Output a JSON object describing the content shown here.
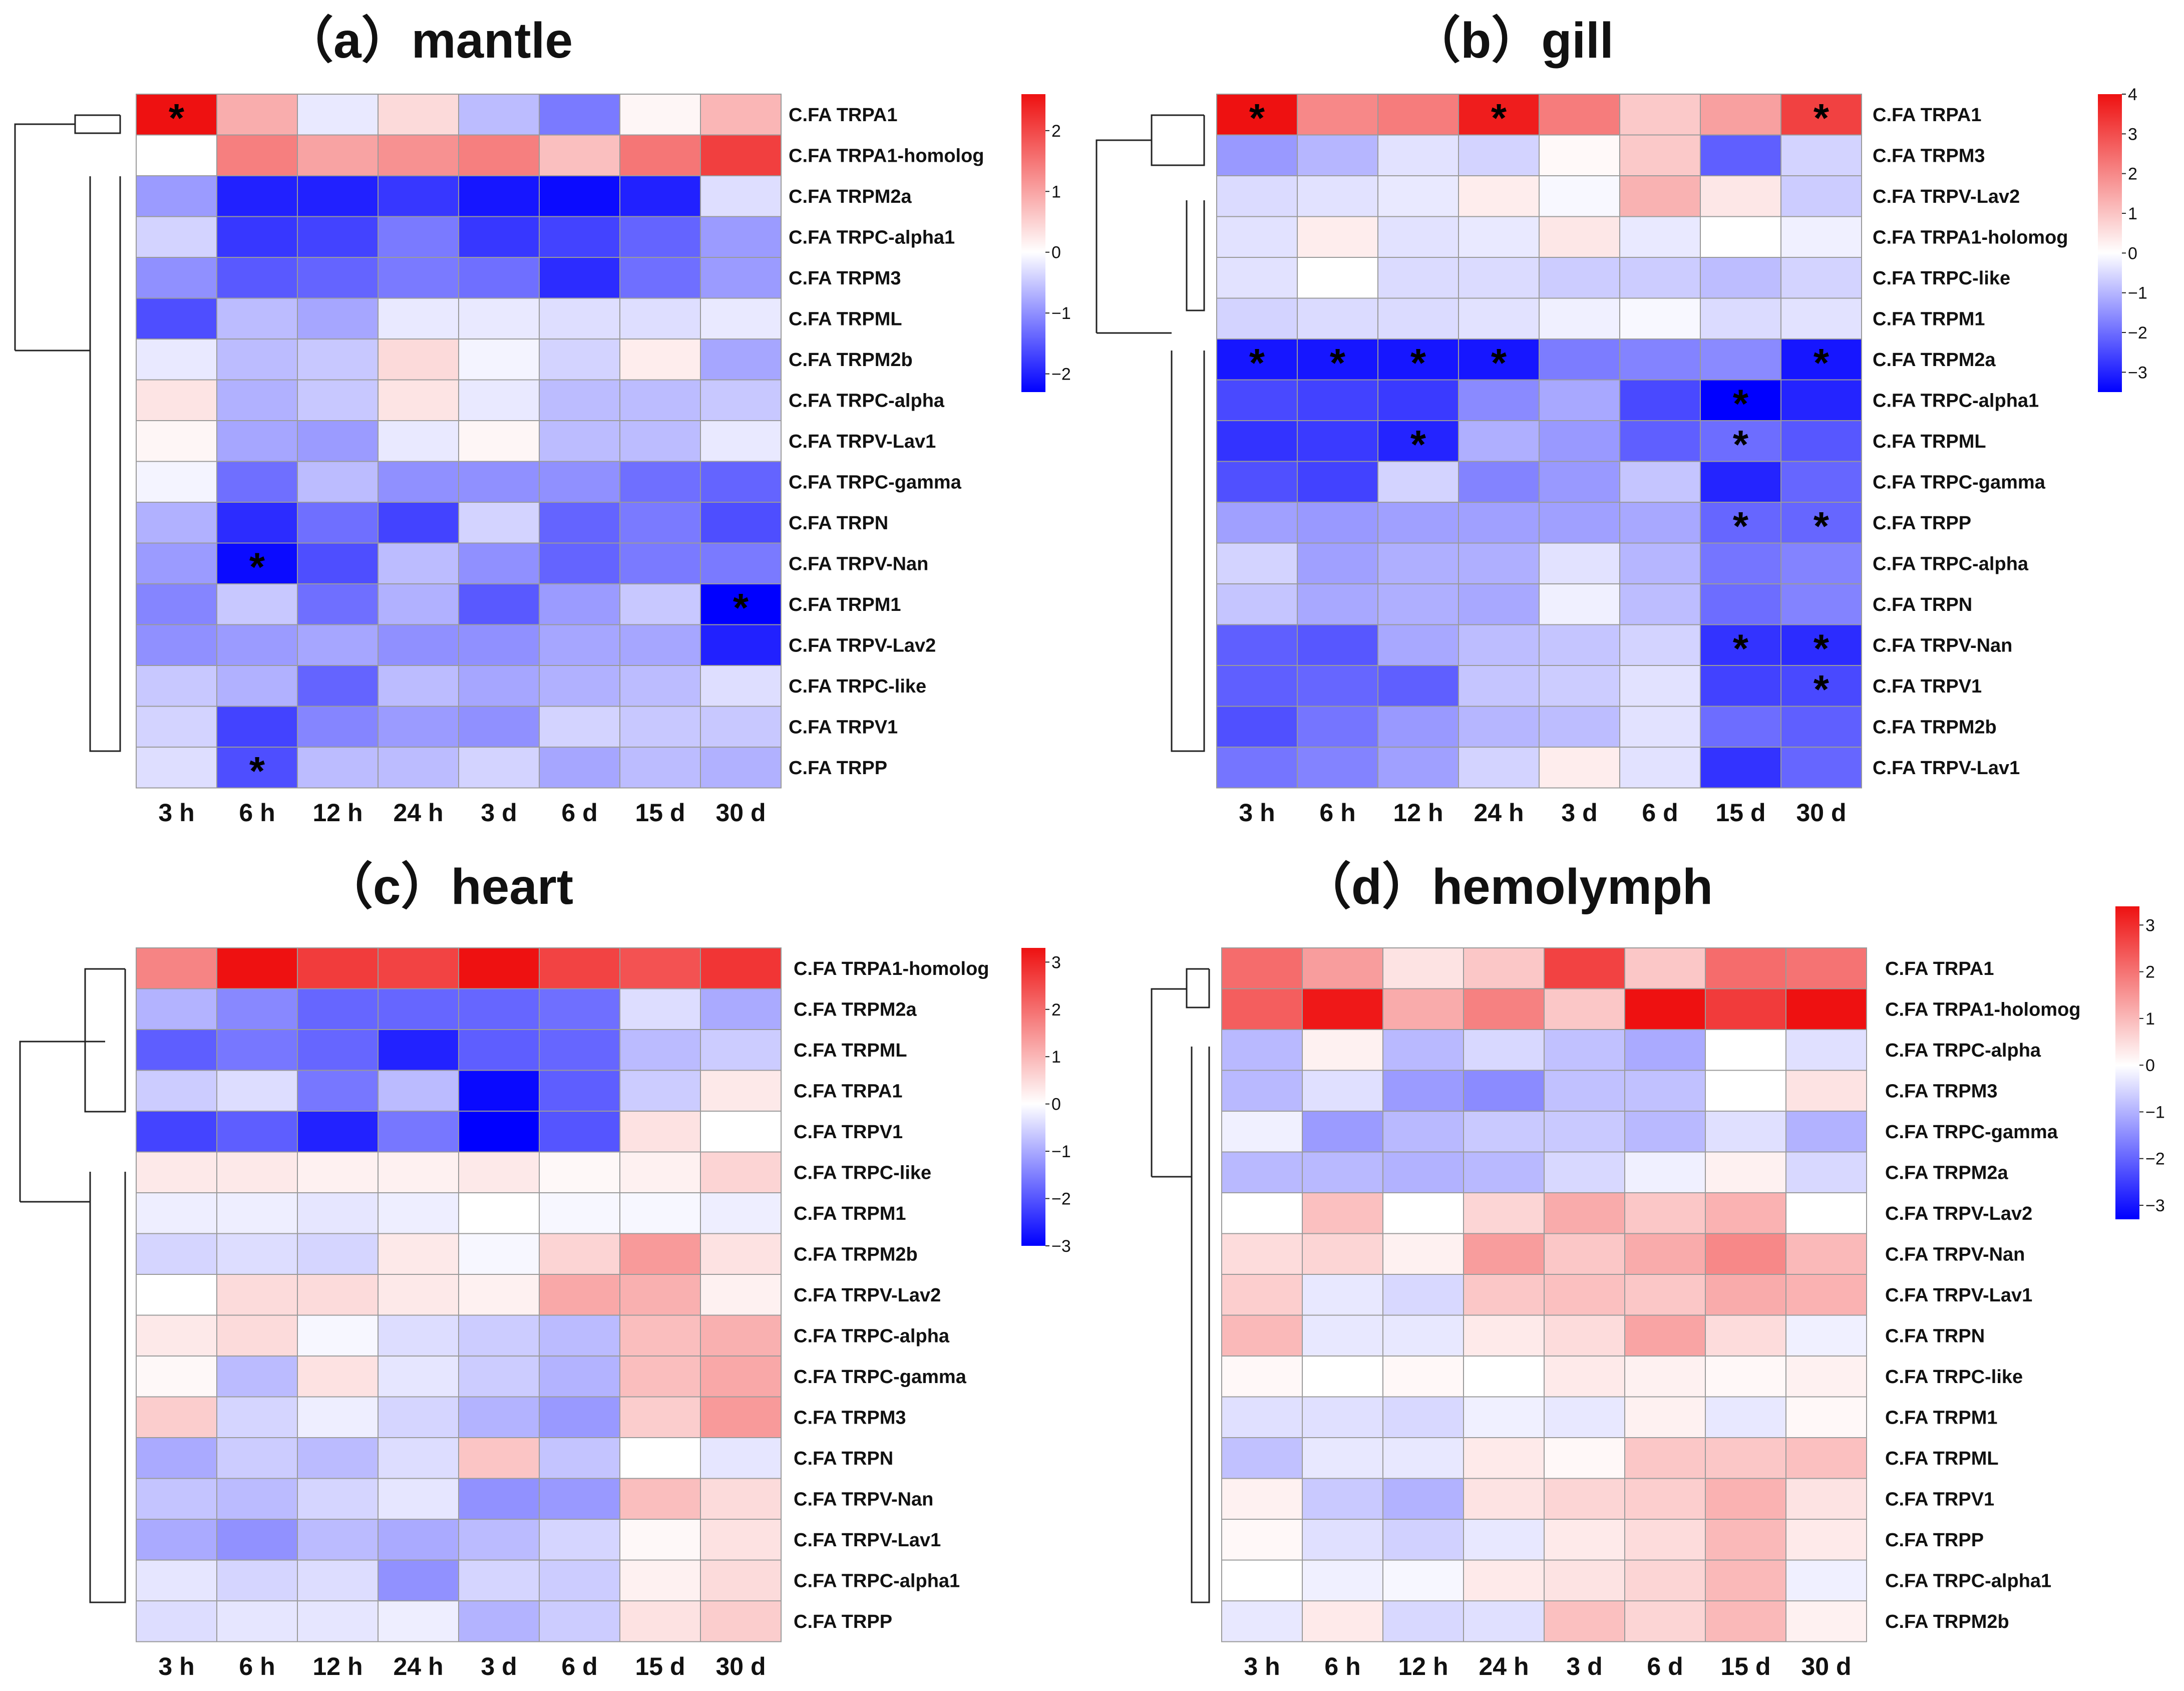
{
  "chart_data": [
    {
      "type": "heatmap",
      "title": "（a）mantle",
      "columns": [
        "3 h",
        "6 h",
        "12 h",
        "24 h",
        "3 d",
        "6 d",
        "15 d",
        "30 d"
      ],
      "rows": [
        "C.FA TRPA1",
        "C.FA TRPA1-homolog",
        "C.FA TRPM2a",
        "C.FA TRPC-alpha1",
        "C.FA TRPM3",
        "C.FA TRPML",
        "C.FA TRPM2b",
        "C.FA TRPC-alpha",
        "C.FA TRPV-Lav1",
        "C.FA TRPC-gamma",
        "C.FA TRPN",
        "C.FA TRPV-Nan",
        "C.FA TRPM1",
        "C.FA TRPV-Lav2",
        "C.FA TRPC-like",
        "C.FA TRPV1",
        "C.FA TRPP"
      ],
      "values": [
        [
          2.6,
          0.9,
          -0.2,
          0.4,
          -0.6,
          -1.2,
          0.1,
          0.8
        ],
        [
          0.0,
          1.4,
          1.0,
          1.2,
          1.4,
          0.7,
          1.5,
          2.1
        ],
        [
          -0.9,
          -2.0,
          -2.0,
          -1.8,
          -2.1,
          -2.2,
          -2.0,
          -0.3
        ],
        [
          -0.4,
          -1.8,
          -1.7,
          -1.2,
          -1.8,
          -1.7,
          -1.4,
          -0.9
        ],
        [
          -1.0,
          -1.5,
          -1.4,
          -1.2,
          -1.3,
          -1.9,
          -1.3,
          -0.9
        ],
        [
          -1.6,
          -0.6,
          -0.8,
          -0.2,
          -0.2,
          -0.3,
          -0.3,
          -0.2
        ],
        [
          -0.2,
          -0.6,
          -0.5,
          0.4,
          -0.1,
          -0.4,
          0.2,
          -0.8
        ],
        [
          0.3,
          -0.7,
          -0.5,
          0.3,
          -0.2,
          -0.6,
          -0.6,
          -0.5
        ],
        [
          0.1,
          -0.8,
          -0.9,
          -0.2,
          0.1,
          -0.6,
          -0.6,
          -0.2
        ],
        [
          -0.1,
          -1.3,
          -0.6,
          -1.0,
          -1.0,
          -1.0,
          -1.3,
          -1.4
        ],
        [
          -0.7,
          -1.9,
          -1.3,
          -1.7,
          -0.4,
          -1.4,
          -1.2,
          -1.6
        ],
        [
          -0.9,
          -2.2,
          -1.6,
          -0.6,
          -1.0,
          -1.4,
          -1.2,
          -1.2
        ],
        [
          -1.1,
          -0.5,
          -1.3,
          -0.7,
          -1.5,
          -0.9,
          -0.5,
          -2.3
        ],
        [
          -1.0,
          -0.9,
          -0.8,
          -1.0,
          -1.0,
          -0.8,
          -0.8,
          -2.0
        ],
        [
          -0.5,
          -0.7,
          -1.4,
          -0.6,
          -0.8,
          -0.7,
          -0.6,
          -0.3
        ],
        [
          -0.4,
          -1.7,
          -1.1,
          -0.9,
          -1.0,
          -0.4,
          -0.5,
          -0.5
        ],
        [
          -0.3,
          -1.6,
          -0.6,
          -0.6,
          -0.4,
          -0.8,
          -0.6,
          -0.7
        ]
      ],
      "significant": [
        [
          0,
          0
        ],
        [
          11,
          1
        ],
        [
          12,
          7
        ],
        [
          16,
          1
        ]
      ],
      "colorbar": {
        "min": -2.3,
        "max": 2.6,
        "ticks": [
          2,
          1,
          0,
          -1,
          -2
        ],
        "tick_labels": [
          "2",
          "1",
          "0",
          "−1",
          "−2"
        ]
      },
      "colors": {
        "low": "#0000ff",
        "mid": "#ffffff",
        "high": "#ee1111"
      }
    },
    {
      "type": "heatmap",
      "title": "（b）gill",
      "columns": [
        "3 h",
        "6 h",
        "12 h",
        "24 h",
        "3 d",
        "6 d",
        "15 d",
        "30 d"
      ],
      "rows": [
        "C.FA TRPA1",
        "C.FA TRPM3",
        "C.FA TRPV-Lav2",
        "C.FA TRPA1-holomog",
        "C.FA TRPC-like",
        "C.FA TRPM1",
        "C.FA TRPM2a",
        "C.FA TRPC-alpha1",
        "C.FA TRPML",
        "C.FA TRPC-gamma",
        "C.FA TRPP",
        "C.FA TRPC-alpha",
        "C.FA TRPN",
        "C.FA TRPV-Nan",
        "C.FA TRPV1",
        "C.FA TRPM2b",
        "C.FA TRPV-Lav1"
      ],
      "values": [
        [
          4.0,
          2.0,
          2.2,
          3.8,
          2.2,
          0.9,
          1.6,
          3.2
        ],
        [
          -1.4,
          -1.0,
          -0.4,
          -0.6,
          0.1,
          0.9,
          -2.2,
          -0.6
        ],
        [
          -0.5,
          -0.4,
          -0.3,
          0.3,
          -0.1,
          1.3,
          0.4,
          -0.7
        ],
        [
          -0.4,
          0.3,
          -0.4,
          -0.3,
          0.4,
          -0.3,
          0.0,
          -0.2
        ],
        [
          -0.4,
          0.0,
          -0.5,
          -0.5,
          -0.7,
          -0.7,
          -0.9,
          -0.6
        ],
        [
          -0.6,
          -0.5,
          -0.5,
          -0.4,
          -0.2,
          -0.1,
          -0.5,
          -0.4
        ],
        [
          -3.2,
          -3.2,
          -3.2,
          -3.2,
          -1.8,
          -1.7,
          -1.6,
          -3.2
        ],
        [
          -2.5,
          -2.6,
          -2.7,
          -1.6,
          -1.2,
          -2.5,
          -3.5,
          -3.0
        ],
        [
          -2.8,
          -2.7,
          -3.0,
          -1.1,
          -1.4,
          -2.2,
          -2.0,
          -2.3
        ],
        [
          -2.4,
          -2.6,
          -0.6,
          -1.7,
          -1.4,
          -0.8,
          -3.0,
          -2.1
        ],
        [
          -1.3,
          -1.4,
          -1.3,
          -1.3,
          -1.3,
          -1.2,
          -2.1,
          -2.1
        ],
        [
          -0.6,
          -1.3,
          -1.1,
          -1.1,
          -0.4,
          -1.0,
          -1.9,
          -1.7
        ],
        [
          -0.8,
          -1.2,
          -1.1,
          -1.2,
          -0.2,
          -0.9,
          -2.0,
          -1.7
        ],
        [
          -2.2,
          -2.3,
          -1.2,
          -0.9,
          -0.8,
          -0.6,
          -2.8,
          -2.9
        ],
        [
          -2.2,
          -2.1,
          -2.2,
          -0.8,
          -0.7,
          -0.4,
          -2.6,
          -2.5
        ],
        [
          -2.4,
          -1.9,
          -1.4,
          -1.0,
          -0.9,
          -0.4,
          -2.0,
          -2.2
        ],
        [
          -1.9,
          -1.7,
          -1.3,
          -0.6,
          0.3,
          -0.4,
          -2.8,
          -2.1
        ]
      ],
      "significant": [
        [
          0,
          0
        ],
        [
          0,
          3
        ],
        [
          0,
          7
        ],
        [
          6,
          0
        ],
        [
          6,
          1
        ],
        [
          6,
          2
        ],
        [
          6,
          3
        ],
        [
          6,
          7
        ],
        [
          7,
          6
        ],
        [
          8,
          2
        ],
        [
          8,
          6
        ],
        [
          10,
          6
        ],
        [
          10,
          7
        ],
        [
          13,
          6
        ],
        [
          13,
          7
        ],
        [
          14,
          7
        ]
      ],
      "colorbar": {
        "min": -3.5,
        "max": 4.0,
        "ticks": [
          4,
          3,
          2,
          1,
          0,
          -1,
          -2,
          -3
        ],
        "tick_labels": [
          "4",
          "3",
          "2",
          "1",
          "0",
          "−1",
          "−2",
          "−3"
        ]
      },
      "colors": {
        "low": "#0000ff",
        "mid": "#ffffff",
        "high": "#ee1111"
      }
    },
    {
      "type": "heatmap",
      "title": "（c）heart",
      "columns": [
        "3 h",
        "6 h",
        "12 h",
        "24 h",
        "3 d",
        "6 d",
        "15 d",
        "30 d"
      ],
      "rows": [
        "C.FA TRPA1-homolog",
        "C.FA TRPM2a",
        "C.FA TRPML",
        "C.FA TRPA1",
        "C.FA TRPV1",
        "C.FA TRPC-like",
        "C.FA TRPM1",
        "C.FA TRPM2b",
        "C.FA TRPV-Lav2",
        "C.FA TRPC-alpha",
        "C.FA TRPC-gamma",
        "C.FA TRPM3",
        "C.FA TRPN",
        "C.FA TRPV-Nan",
        "C.FA TRPV-Lav1",
        "C.FA TRPC-alpha1",
        "C.FA TRPP"
      ],
      "values": [
        [
          1.7,
          3.3,
          2.7,
          2.6,
          3.3,
          2.6,
          2.4,
          2.8
        ],
        [
          -0.9,
          -1.4,
          -1.8,
          -1.8,
          -1.8,
          -1.7,
          -0.4,
          -1.0
        ],
        [
          -1.9,
          -1.6,
          -1.8,
          -2.6,
          -1.9,
          -1.8,
          -0.8,
          -0.6
        ],
        [
          -0.6,
          -0.4,
          -1.6,
          -0.8,
          -2.9,
          -1.9,
          -0.6,
          0.3
        ],
        [
          -2.2,
          -1.9,
          -2.6,
          -1.6,
          -3.0,
          -2.0,
          0.4,
          0.0
        ],
        [
          0.3,
          0.3,
          0.2,
          0.2,
          0.3,
          0.1,
          0.2,
          0.6
        ],
        [
          -0.2,
          -0.2,
          -0.3,
          -0.2,
          0.0,
          -0.1,
          -0.1,
          -0.2
        ],
        [
          -0.5,
          -0.4,
          -0.5,
          0.3,
          -0.1,
          0.6,
          1.4,
          0.4
        ],
        [
          0.0,
          0.5,
          0.5,
          0.3,
          0.2,
          1.2,
          1.1,
          0.2
        ],
        [
          0.3,
          0.5,
          -0.1,
          -0.4,
          -0.6,
          -0.8,
          0.9,
          1.1
        ],
        [
          0.1,
          -0.8,
          0.4,
          -0.3,
          -0.6,
          -0.9,
          0.9,
          1.2
        ],
        [
          0.7,
          -0.5,
          -0.2,
          -0.5,
          -0.9,
          -1.2,
          0.7,
          1.4
        ],
        [
          -1.0,
          -0.6,
          -0.8,
          -0.4,
          0.8,
          -0.7,
          0.0,
          -0.3
        ],
        [
          -0.7,
          -0.8,
          -0.5,
          -0.3,
          -1.3,
          -1.2,
          0.9,
          0.5
        ],
        [
          -1.0,
          -1.3,
          -0.8,
          -1.0,
          -0.8,
          -0.5,
          0.1,
          0.4
        ],
        [
          -0.3,
          -0.5,
          -0.4,
          -1.3,
          -0.5,
          -0.6,
          0.2,
          0.5
        ],
        [
          -0.4,
          -0.3,
          -0.3,
          -0.2,
          -0.9,
          -0.6,
          0.4,
          0.7
        ]
      ],
      "significant": [],
      "colorbar": {
        "min": -3.0,
        "max": 3.3,
        "ticks": [
          3,
          2,
          1,
          0,
          -1,
          -2,
          -3
        ],
        "tick_labels": [
          "3",
          "2",
          "1",
          "0",
          "−1",
          "−2",
          "−3"
        ]
      },
      "colors": {
        "low": "#0000ff",
        "mid": "#ffffff",
        "high": "#ee1111"
      }
    },
    {
      "type": "heatmap",
      "title": "（d）hemolymph",
      "columns": [
        "3 h",
        "6 h",
        "12 h",
        "24 h",
        "3 d",
        "6 d",
        "15 d",
        "30 d"
      ],
      "rows": [
        "C.FA TRPA1",
        "C.FA TRPA1-holomog",
        "C.FA TRPC-alpha",
        "C.FA TRPM3",
        "C.FA TRPC-gamma",
        "C.FA TRPM2a",
        "C.FA TRPV-Lav2",
        "C.FA TRPV-Nan",
        "C.FA TRPV-Lav1",
        "C.FA TRPN",
        "C.FA TRPC-like",
        "C.FA TRPM1",
        "C.FA TRPML",
        "C.FA TRPV1",
        "C.FA TRPP",
        "C.FA TRPC-alpha1",
        "C.FA TRPM2b"
      ],
      "values": [
        [
          2.1,
          1.4,
          0.4,
          0.8,
          2.7,
          0.8,
          2.1,
          2.0
        ],
        [
          2.3,
          3.3,
          1.2,
          1.8,
          0.8,
          3.4,
          2.8,
          3.4
        ],
        [
          -0.9,
          0.2,
          -0.9,
          -0.5,
          -0.8,
          -1.1,
          0.0,
          -0.4
        ],
        [
          -0.9,
          -0.4,
          -1.3,
          -1.5,
          -0.8,
          -0.8,
          0.0,
          0.4
        ],
        [
          -0.2,
          -1.3,
          -0.9,
          -0.7,
          -0.7,
          -0.9,
          -0.4,
          -1.0
        ],
        [
          -0.9,
          -0.9,
          -1.0,
          -0.9,
          -0.5,
          -0.2,
          0.2,
          -0.5
        ],
        [
          0.0,
          0.9,
          0.0,
          0.6,
          1.2,
          0.8,
          1.1,
          0.0
        ],
        [
          0.5,
          0.6,
          0.2,
          1.4,
          0.8,
          1.2,
          1.7,
          1.0
        ],
        [
          0.7,
          -0.3,
          -0.5,
          0.8,
          0.9,
          0.8,
          1.2,
          1.1
        ],
        [
          1.0,
          -0.3,
          -0.3,
          0.3,
          0.5,
          1.3,
          0.5,
          -0.2
        ],
        [
          0.1,
          0.0,
          0.1,
          0.0,
          0.3,
          0.2,
          0.1,
          0.2
        ],
        [
          -0.4,
          -0.4,
          -0.5,
          -0.2,
          -0.3,
          0.2,
          -0.3,
          0.1
        ],
        [
          -0.8,
          -0.3,
          -0.3,
          0.3,
          0.1,
          0.8,
          0.8,
          0.9
        ],
        [
          0.2,
          -0.7,
          -1.0,
          0.4,
          0.6,
          0.7,
          1.1,
          0.4
        ],
        [
          0.1,
          -0.4,
          -0.6,
          -0.3,
          0.3,
          0.5,
          1.0,
          0.3
        ],
        [
          0.0,
          -0.2,
          -0.1,
          0.3,
          0.4,
          0.6,
          1.0,
          -0.2
        ],
        [
          -0.3,
          0.3,
          -0.5,
          -0.4,
          0.9,
          0.6,
          1.0,
          0.2
        ]
      ],
      "significant": [],
      "colorbar": {
        "min": -3.3,
        "max": 3.4,
        "ticks": [
          3,
          2,
          1,
          0,
          -1,
          -2,
          -3
        ],
        "tick_labels": [
          "3",
          "2",
          "1",
          "0",
          "−1",
          "−2",
          "−3"
        ]
      },
      "colors": {
        "low": "#0000ff",
        "mid": "#ffffff",
        "high": "#ee1111"
      }
    }
  ]
}
